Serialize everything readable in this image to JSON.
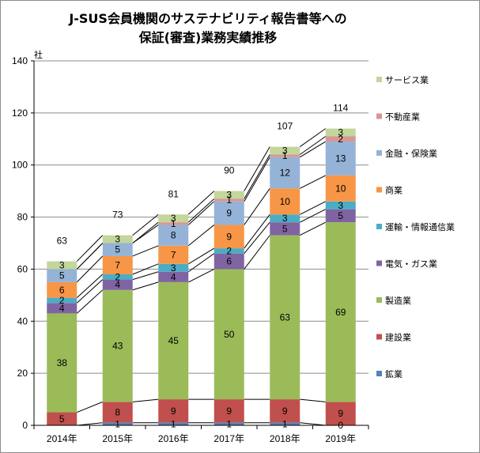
{
  "chart_data": {
    "type": "bar",
    "stacked": true,
    "title": [
      "J-SUS会員機関のサステナビリティ報告書等への",
      "保証(審査)業務実績推移"
    ],
    "y_unit": "社",
    "ylim": [
      0,
      140
    ],
    "y_ticks": [
      0,
      20,
      40,
      60,
      80,
      100,
      120,
      140
    ],
    "grid": true,
    "legend_position": "right",
    "categories": [
      "2014年",
      "2015年",
      "2016年",
      "2017年",
      "2018年",
      "2019年"
    ],
    "totals": [
      63,
      73,
      81,
      90,
      107,
      114
    ],
    "series": [
      {
        "name": "鉱業",
        "color": "#4f81bd",
        "values": [
          0,
          1,
          1,
          1,
          1,
          0
        ],
        "show_labels": [
          false,
          true,
          true,
          true,
          true,
          true
        ]
      },
      {
        "name": "建設業",
        "color": "#c0504d",
        "values": [
          5,
          8,
          9,
          9,
          9,
          9
        ]
      },
      {
        "name": "製造業",
        "color": "#9bbb59",
        "values": [
          38,
          43,
          45,
          50,
          63,
          69
        ]
      },
      {
        "name": "電気・ガス業",
        "color": "#8064a2",
        "values": [
          4,
          4,
          4,
          6,
          5,
          5
        ]
      },
      {
        "name": "運輸・情報通信業",
        "color": "#4bacc6",
        "values": [
          2,
          2,
          3,
          2,
          3,
          3
        ]
      },
      {
        "name": "商業",
        "color": "#f79646",
        "values": [
          6,
          7,
          7,
          9,
          10,
          10
        ]
      },
      {
        "name": "金融・保険業",
        "color": "#95b3d7",
        "values": [
          5,
          5,
          8,
          9,
          12,
          13
        ]
      },
      {
        "name": "不動産業",
        "color": "#d99694",
        "values": [
          0,
          0,
          1,
          1,
          1,
          2
        ],
        "show_labels": [
          false,
          false,
          true,
          true,
          true,
          true
        ]
      },
      {
        "name": "サービス業",
        "color": "#c3d69b",
        "values": [
          3,
          3,
          3,
          3,
          3,
          3
        ]
      }
    ]
  }
}
